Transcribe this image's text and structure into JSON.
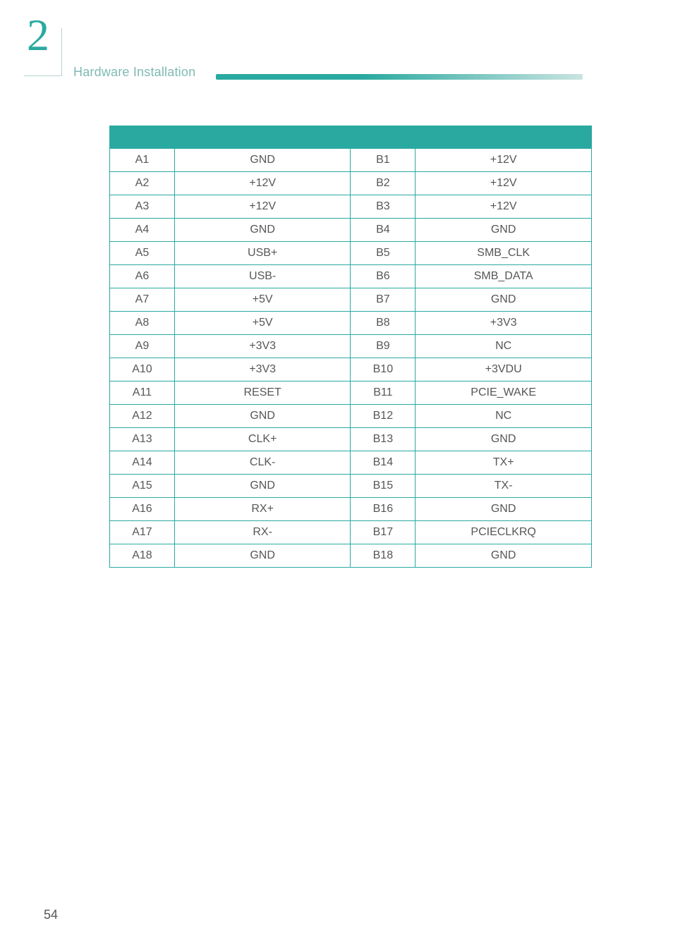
{
  "chapter": {
    "number": "2",
    "title": "Hardware Installation"
  },
  "pinout": {
    "rows": [
      {
        "a_pin": "A1",
        "a_sig": "GND",
        "b_pin": "B1",
        "b_sig": "+12V"
      },
      {
        "a_pin": "A2",
        "a_sig": "+12V",
        "b_pin": "B2",
        "b_sig": "+12V"
      },
      {
        "a_pin": "A3",
        "a_sig": "+12V",
        "b_pin": "B3",
        "b_sig": "+12V"
      },
      {
        "a_pin": "A4",
        "a_sig": "GND",
        "b_pin": "B4",
        "b_sig": "GND"
      },
      {
        "a_pin": "A5",
        "a_sig": "USB+",
        "b_pin": "B5",
        "b_sig": "SMB_CLK"
      },
      {
        "a_pin": "A6",
        "a_sig": "USB-",
        "b_pin": "B6",
        "b_sig": "SMB_DATA"
      },
      {
        "a_pin": "A7",
        "a_sig": "+5V",
        "b_pin": "B7",
        "b_sig": "GND"
      },
      {
        "a_pin": "A8",
        "a_sig": "+5V",
        "b_pin": "B8",
        "b_sig": "+3V3"
      },
      {
        "a_pin": "A9",
        "a_sig": "+3V3",
        "b_pin": "B9",
        "b_sig": "NC"
      },
      {
        "a_pin": "A10",
        "a_sig": "+3V3",
        "b_pin": "B10",
        "b_sig": "+3VDU"
      },
      {
        "a_pin": "A11",
        "a_sig": "RESET",
        "b_pin": "B11",
        "b_sig": "PCIE_WAKE"
      },
      {
        "a_pin": "A12",
        "a_sig": "GND",
        "b_pin": "B12",
        "b_sig": "NC"
      },
      {
        "a_pin": "A13",
        "a_sig": "CLK+",
        "b_pin": "B13",
        "b_sig": "GND"
      },
      {
        "a_pin": "A14",
        "a_sig": "CLK-",
        "b_pin": "B14",
        "b_sig": "TX+"
      },
      {
        "a_pin": "A15",
        "a_sig": "GND",
        "b_pin": "B15",
        "b_sig": "TX-"
      },
      {
        "a_pin": "A16",
        "a_sig": "RX+",
        "b_pin": "B16",
        "b_sig": "GND"
      },
      {
        "a_pin": "A17",
        "a_sig": "RX-",
        "b_pin": "B17",
        "b_sig": "PCIECLKRQ"
      },
      {
        "a_pin": "A18",
        "a_sig": "GND",
        "b_pin": "B18",
        "b_sig": "GND"
      }
    ]
  },
  "page_number": "54",
  "colors": {
    "accent": "#2aa9a0",
    "accent_light": "#7fbab4",
    "badge_border": "#b5d6d2",
    "text": "#565656",
    "background": "#ffffff"
  }
}
